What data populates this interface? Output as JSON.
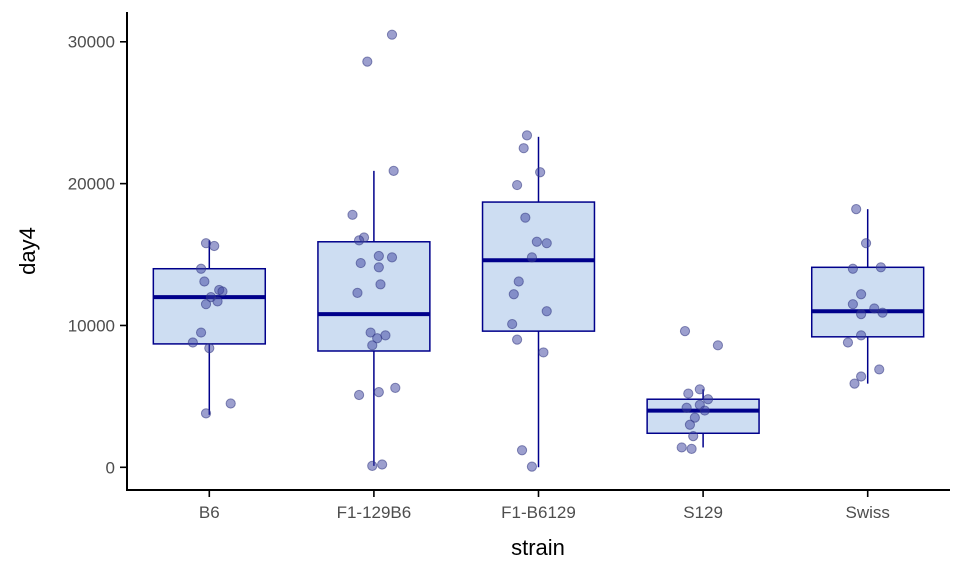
{
  "chart_data": {
    "type": "boxplot",
    "title": "",
    "xlabel": "strain",
    "ylabel": "day4",
    "categories": [
      "B6",
      "F1-129B6",
      "F1-B6129",
      "S129",
      "Swiss"
    ],
    "y_ticks": [
      0,
      10000,
      20000,
      30000
    ],
    "ylim": [
      -1600,
      32100
    ],
    "grid": false,
    "legend": "none",
    "boxes": [
      {
        "category": "B6",
        "whisker_low": 3700,
        "q1": 8700,
        "median": 12000,
        "q3": 14000,
        "whisker_high": 16000
      },
      {
        "category": "F1-129B6",
        "whisker_low": 100,
        "q1": 8200,
        "median": 10800,
        "q3": 15900,
        "whisker_high": 20900
      },
      {
        "category": "F1-B6129",
        "whisker_low": 0,
        "q1": 9600,
        "median": 14600,
        "q3": 18700,
        "whisker_high": 23300
      },
      {
        "category": "S129",
        "whisker_low": 1400,
        "q1": 2400,
        "median": 4000,
        "q3": 4800,
        "whisker_high": 5500
      },
      {
        "category": "Swiss",
        "whisker_low": 5900,
        "q1": 9200,
        "median": 11000,
        "q3": 14100,
        "whisker_high": 18200
      }
    ],
    "points": [
      {
        "category": "B6",
        "jitter": [
          [
            -0.02,
            15800
          ],
          [
            0.03,
            15600
          ],
          [
            -0.05,
            14000
          ],
          [
            -0.03,
            13100
          ],
          [
            0.06,
            12500
          ],
          [
            0.08,
            12400
          ],
          [
            0.01,
            12000
          ],
          [
            0.05,
            11700
          ],
          [
            -0.02,
            11500
          ],
          [
            -0.05,
            9500
          ],
          [
            -0.1,
            8800
          ],
          [
            0.0,
            8400
          ],
          [
            0.13,
            4500
          ],
          [
            -0.02,
            3800
          ]
        ]
      },
      {
        "category": "F1-129B6",
        "jitter": [
          [
            0.11,
            30500
          ],
          [
            -0.04,
            28600
          ],
          [
            0.12,
            20900
          ],
          [
            -0.13,
            17800
          ],
          [
            -0.06,
            16200
          ],
          [
            -0.09,
            16000
          ],
          [
            0.03,
            14900
          ],
          [
            0.11,
            14800
          ],
          [
            -0.08,
            14400
          ],
          [
            0.03,
            14100
          ],
          [
            0.04,
            12900
          ],
          [
            -0.1,
            12300
          ],
          [
            -0.02,
            9500
          ],
          [
            0.07,
            9300
          ],
          [
            0.02,
            9100
          ],
          [
            -0.01,
            8600
          ],
          [
            0.13,
            5600
          ],
          [
            0.03,
            5300
          ],
          [
            -0.09,
            5100
          ],
          [
            0.05,
            200
          ],
          [
            -0.01,
            100
          ]
        ]
      },
      {
        "category": "F1-B6129",
        "jitter": [
          [
            -0.07,
            23400
          ],
          [
            -0.09,
            22500
          ],
          [
            0.01,
            20800
          ],
          [
            -0.13,
            19900
          ],
          [
            -0.08,
            17600
          ],
          [
            -0.01,
            15900
          ],
          [
            0.05,
            15800
          ],
          [
            -0.04,
            14800
          ],
          [
            -0.12,
            13100
          ],
          [
            -0.15,
            12200
          ],
          [
            0.05,
            11000
          ],
          [
            -0.16,
            10100
          ],
          [
            -0.13,
            9000
          ],
          [
            0.03,
            8100
          ],
          [
            -0.1,
            1200
          ],
          [
            -0.04,
            50
          ]
        ]
      },
      {
        "category": "S129",
        "jitter": [
          [
            -0.11,
            9600
          ],
          [
            0.09,
            8600
          ],
          [
            -0.02,
            5500
          ],
          [
            -0.09,
            5200
          ],
          [
            0.03,
            4800
          ],
          [
            -0.02,
            4400
          ],
          [
            -0.1,
            4200
          ],
          [
            0.01,
            4000
          ],
          [
            -0.05,
            3500
          ],
          [
            -0.08,
            3000
          ],
          [
            -0.06,
            2200
          ],
          [
            -0.13,
            1400
          ],
          [
            -0.07,
            1300
          ]
        ]
      },
      {
        "category": "Swiss",
        "jitter": [
          [
            -0.07,
            18200
          ],
          [
            -0.01,
            15800
          ],
          [
            0.08,
            14100
          ],
          [
            -0.09,
            14000
          ],
          [
            -0.04,
            12200
          ],
          [
            -0.09,
            11500
          ],
          [
            0.04,
            11200
          ],
          [
            0.09,
            10900
          ],
          [
            -0.04,
            10800
          ],
          [
            -0.04,
            9300
          ],
          [
            -0.12,
            8800
          ],
          [
            0.07,
            6900
          ],
          [
            -0.04,
            6400
          ],
          [
            -0.08,
            5900
          ]
        ]
      }
    ],
    "colors": {
      "box_fill": "#cdddf2",
      "box_stroke": "#00008b",
      "median": "#00008b",
      "whisker": "#00008b",
      "point_fill": "#3a3f9e",
      "point_stroke": "#2f3480",
      "axis_line": "#000000",
      "tick_label": "#4d4d4d",
      "background": "#ffffff"
    }
  }
}
